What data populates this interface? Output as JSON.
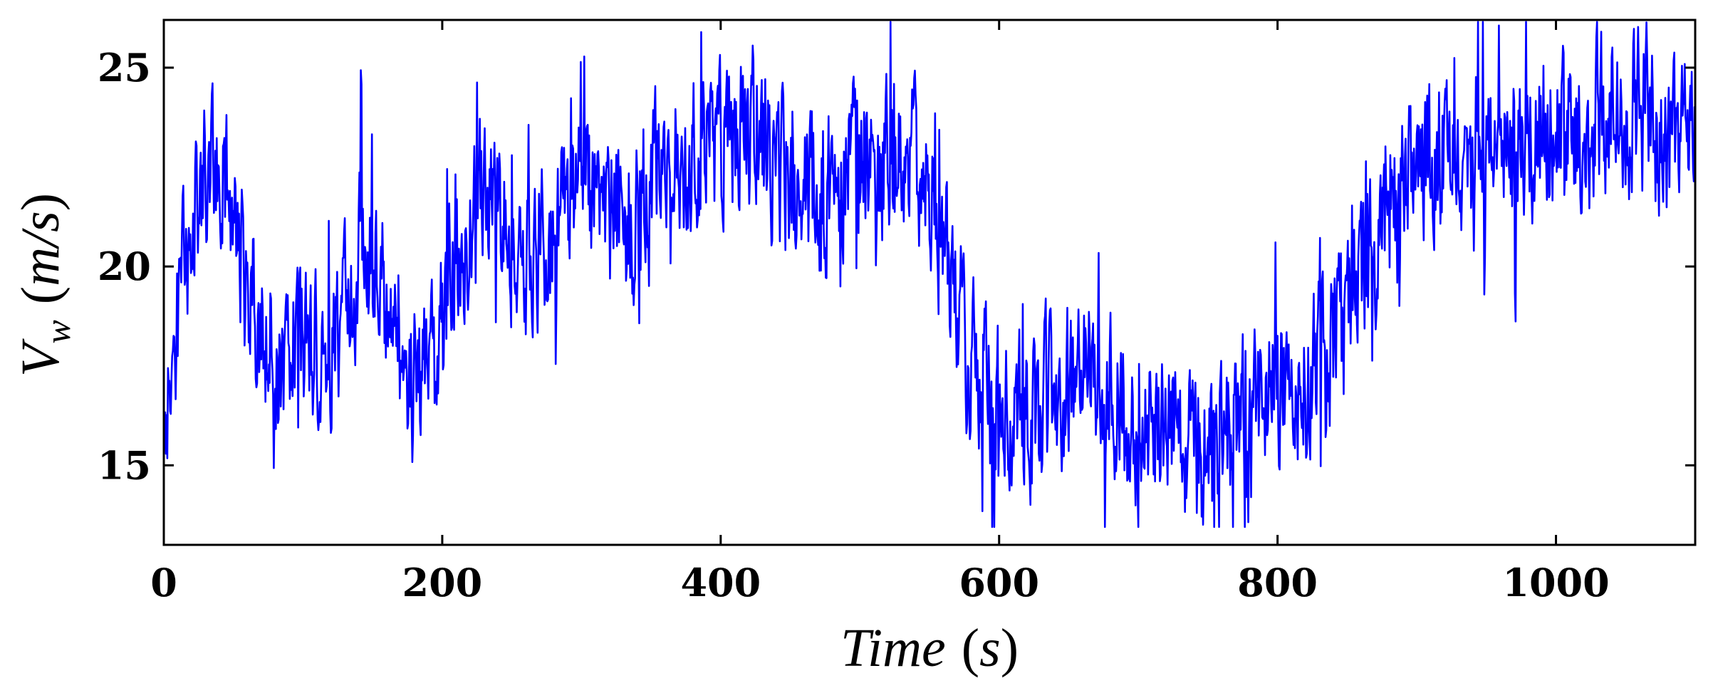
{
  "chart_data": {
    "type": "line",
    "title": "",
    "xlabel": {
      "symbol": "Time",
      "unit_open": "(",
      "unit": "s",
      "unit_close": ")"
    },
    "ylabel": {
      "symbol": "V",
      "subscript": "w",
      "unit_open": "(",
      "unit": "m/s",
      "unit_close": ")"
    },
    "xlim": [
      0,
      1100
    ],
    "ylim": [
      13,
      26.2
    ],
    "x_ticks": [
      0,
      200,
      400,
      600,
      800,
      1000
    ],
    "x_tick_labels": [
      "0",
      "200",
      "400",
      "600",
      "800",
      "1000"
    ],
    "y_ticks": [
      15,
      20,
      25
    ],
    "y_tick_labels": [
      "15",
      "20",
      "25"
    ],
    "grid": false,
    "legend": false,
    "line_color": "#0000ff",
    "sampling_interval_s": 0.5,
    "noise_amplitude_m_per_s": 3.4,
    "trend": {
      "x": [
        0,
        3,
        10,
        20,
        30,
        42,
        52,
        62,
        72,
        82,
        95,
        108,
        120,
        132,
        140,
        150,
        160,
        172,
        182,
        190,
        198,
        205,
        218,
        235,
        250,
        262,
        275,
        290,
        305,
        318,
        330,
        345,
        360,
        380,
        400,
        420,
        440,
        460,
        480,
        500,
        520,
        540,
        555,
        568,
        578,
        590,
        605,
        620,
        640,
        660,
        680,
        700,
        715,
        730,
        745,
        760,
        775,
        790,
        805,
        820,
        835,
        850,
        860,
        870,
        880,
        890,
        905,
        920,
        935,
        950,
        965,
        980,
        1000,
        1015,
        1030,
        1045,
        1060,
        1070,
        1080,
        1090,
        1100
      ],
      "y": [
        15.2,
        16.5,
        18.5,
        21.5,
        22.6,
        22.3,
        20.8,
        19.5,
        18.5,
        17.8,
        18.0,
        18.2,
        17.5,
        18.8,
        20.5,
        20.0,
        19.0,
        17.5,
        17.0,
        17.2,
        18.0,
        19.5,
        20.8,
        21.3,
        20.8,
        20.2,
        20.5,
        21.2,
        21.8,
        21.3,
        21.0,
        21.8,
        22.8,
        23.0,
        23.0,
        23.5,
        22.6,
        21.8,
        22.0,
        22.8,
        22.3,
        22.5,
        21.2,
        19.5,
        17.8,
        17.0,
        16.5,
        16.0,
        16.8,
        17.3,
        16.8,
        16.0,
        15.8,
        15.8,
        15.5,
        15.8,
        16.5,
        17.2,
        17.0,
        17.0,
        17.6,
        18.6,
        19.5,
        20.0,
        21.5,
        22.0,
        22.5,
        23.0,
        22.8,
        22.5,
        22.8,
        23.2,
        23.6,
        23.3,
        23.8,
        24.2,
        23.8,
        23.6,
        22.8,
        23.2,
        23.5
      ]
    }
  }
}
